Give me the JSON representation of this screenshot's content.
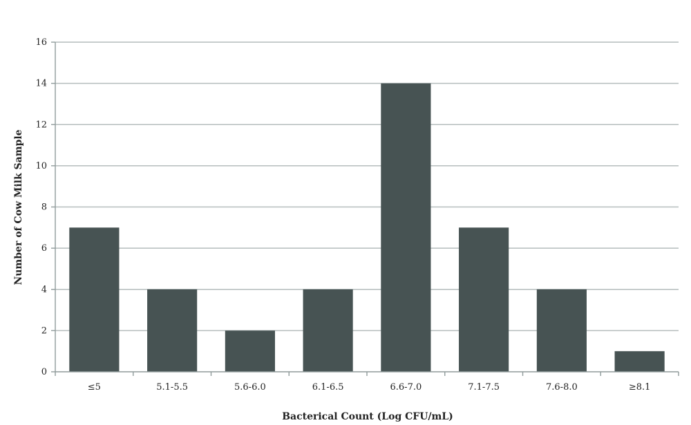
{
  "chart_data": {
    "type": "bar",
    "categories": [
      "≤5",
      "5.1-5.5",
      "5.6-6.0",
      "6.1-6.5",
      "6.6-7.0",
      "7.1-7.5",
      "7.6-8.0",
      "≥8.1"
    ],
    "values": [
      7,
      4,
      2,
      4,
      14,
      7,
      4,
      1
    ],
    "title": "",
    "xlabel": "Bacterical Count (Log CFU/mL)",
    "ylabel": "Number of Cow Milk Sample",
    "ylim": [
      0,
      16
    ],
    "yticks": [
      0,
      2,
      4,
      6,
      8,
      10,
      12,
      14,
      16
    ],
    "grid": true,
    "legend": "none",
    "bar_color": "#475353"
  }
}
